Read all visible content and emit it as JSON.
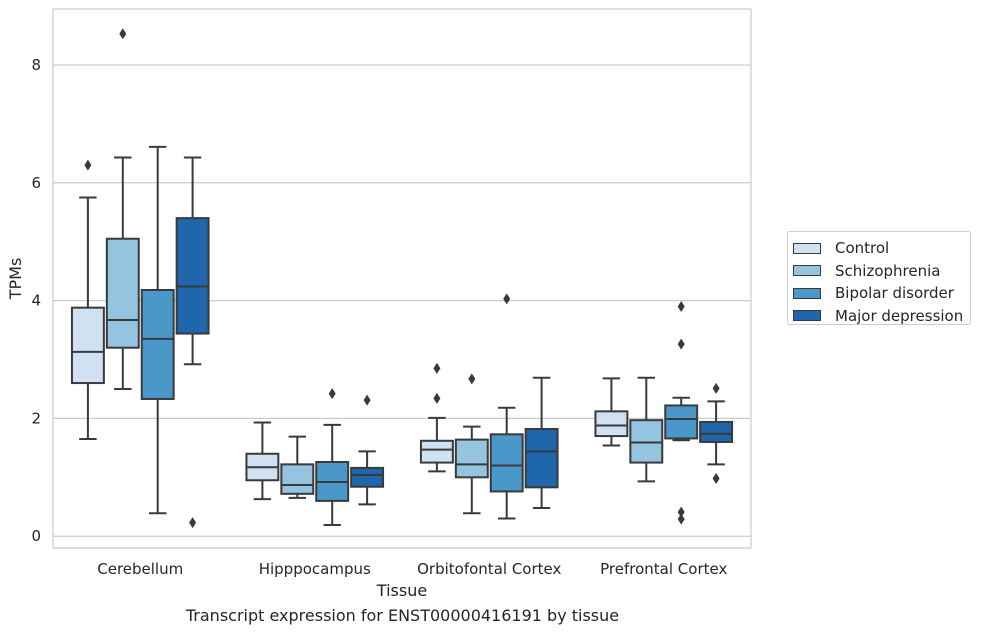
{
  "chart_data": {
    "type": "box",
    "title": "",
    "caption": "Transcript expression for ENST00000416191 by tissue",
    "xlabel": "Tissue",
    "ylabel": "TPMs",
    "ylim": [
      -0.2,
      8.95
    ],
    "yticks": [
      "0",
      "2",
      "4",
      "6",
      "8"
    ],
    "grid": "horizontal",
    "legend_position": "right",
    "categories": [
      "Cerebellum",
      "Hipppocampus",
      "Orbitofontal Cortex",
      "Prefrontal Cortex"
    ],
    "series": [
      {
        "name": "Control",
        "color": "#d0e1f2",
        "boxes": [
          {
            "low": 1.65,
            "q1": 2.6,
            "median": 3.13,
            "q3": 3.88,
            "high": 5.75,
            "outliers": [
              6.3
            ]
          },
          {
            "low": 0.63,
            "q1": 0.95,
            "median": 1.17,
            "q3": 1.4,
            "high": 1.93,
            "outliers": []
          },
          {
            "low": 1.1,
            "q1": 1.25,
            "median": 1.47,
            "q3": 1.62,
            "high": 2.01,
            "outliers": [
              2.34,
              2.85
            ]
          },
          {
            "low": 1.54,
            "q1": 1.7,
            "median": 1.88,
            "q3": 2.12,
            "high": 2.68,
            "outliers": []
          }
        ]
      },
      {
        "name": "Schizophrenia",
        "color": "#94c4df",
        "boxes": [
          {
            "low": 2.5,
            "q1": 3.2,
            "median": 3.67,
            "q3": 5.05,
            "high": 6.43,
            "outliers": [
              8.53
            ]
          },
          {
            "low": 0.65,
            "q1": 0.72,
            "median": 0.87,
            "q3": 1.22,
            "high": 1.69,
            "outliers": []
          },
          {
            "low": 0.39,
            "q1": 1.0,
            "median": 1.22,
            "q3": 1.64,
            "high": 1.86,
            "outliers": [
              2.67
            ]
          },
          {
            "low": 0.93,
            "q1": 1.25,
            "median": 1.59,
            "q3": 1.97,
            "high": 2.69,
            "outliers": []
          }
        ]
      },
      {
        "name": "Bipolar disorder",
        "color": "#4a98c9",
        "boxes": [
          {
            "low": 0.39,
            "q1": 2.33,
            "median": 3.35,
            "q3": 4.18,
            "high": 6.61,
            "outliers": []
          },
          {
            "low": 0.19,
            "q1": 0.6,
            "median": 0.92,
            "q3": 1.26,
            "high": 1.89,
            "outliers": [
              2.42
            ]
          },
          {
            "low": 0.3,
            "q1": 0.76,
            "median": 1.2,
            "q3": 1.73,
            "high": 2.18,
            "outliers": [
              4.03
            ]
          },
          {
            "low": 1.63,
            "q1": 1.66,
            "median": 1.99,
            "q3": 2.22,
            "high": 2.35,
            "outliers": [
              0.29,
              0.41,
              3.26,
              3.9
            ]
          }
        ]
      },
      {
        "name": "Major depression",
        "color": "#2066ac",
        "boxes": [
          {
            "low": 2.92,
            "q1": 3.44,
            "median": 4.24,
            "q3": 5.4,
            "high": 6.43,
            "outliers": [
              0.23
            ]
          },
          {
            "low": 0.54,
            "q1": 0.84,
            "median": 1.04,
            "q3": 1.16,
            "high": 1.44,
            "outliers": [
              2.31
            ]
          },
          {
            "low": 0.48,
            "q1": 0.83,
            "median": 1.44,
            "q3": 1.82,
            "high": 2.69,
            "outliers": []
          },
          {
            "low": 1.22,
            "q1": 1.6,
            "median": 1.74,
            "q3": 1.94,
            "high": 2.29,
            "outliers": [
              0.98,
              2.51
            ]
          }
        ]
      }
    ]
  }
}
